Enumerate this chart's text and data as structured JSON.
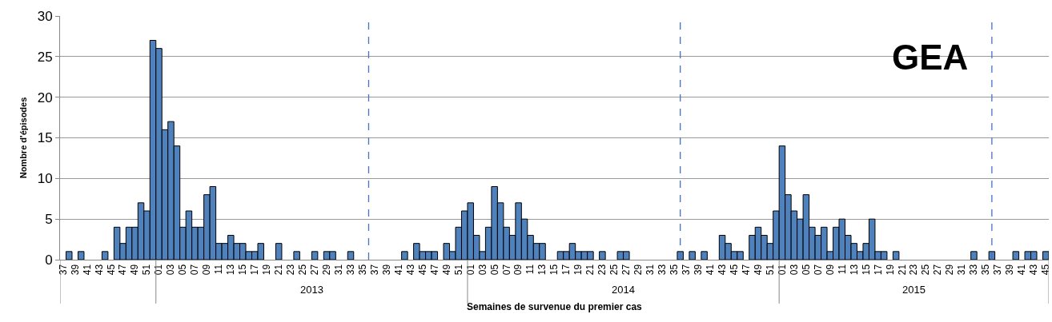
{
  "chart_data": {
    "type": "bar",
    "title": "GEA",
    "xlabel": "Semaines de survenue du premier cas",
    "ylabel": "Nombre d'épisodes",
    "annotations": [
      "2013",
      "2014",
      "2015"
    ],
    "categories": [
      "37",
      null,
      "39",
      null,
      "41",
      null,
      "43",
      null,
      "45",
      null,
      "47",
      null,
      "49",
      null,
      "51",
      null,
      "01",
      null,
      "03",
      null,
      "05",
      null,
      "07",
      null,
      "09",
      null,
      "11",
      null,
      "13",
      null,
      "15",
      null,
      "17",
      null,
      "19",
      null,
      "21",
      null,
      "23",
      null,
      "25",
      null,
      "27",
      null,
      "29",
      null,
      "31",
      null,
      "33",
      null,
      "35",
      null,
      "37",
      null,
      "39",
      null,
      "41",
      null,
      "43",
      null,
      "45",
      null,
      "47",
      null,
      "49",
      null,
      "51",
      null,
      "01",
      null,
      "03",
      null,
      "05",
      null,
      "07",
      null,
      "09",
      null,
      "11",
      null,
      "13",
      null,
      "15",
      null,
      "17",
      null,
      "19",
      null,
      "21",
      null,
      "23",
      null,
      "25",
      null,
      "27",
      null,
      "29",
      null,
      "31",
      null,
      "33",
      null,
      "35",
      null,
      "37",
      null,
      "39",
      null,
      "41",
      null,
      "43",
      null,
      "45",
      null,
      "47",
      null,
      "49",
      null,
      "51",
      null,
      "01",
      null,
      "03",
      null,
      "05",
      null,
      "07",
      null,
      "09",
      null,
      "11",
      null,
      "13",
      null,
      "15",
      null,
      "17",
      null,
      "19",
      null,
      "21",
      null,
      "23",
      null,
      "25",
      null,
      "27",
      null,
      "29",
      null,
      "31",
      null,
      "33",
      null,
      "35",
      null,
      "37",
      null,
      "39",
      null,
      "41",
      null,
      "43",
      null,
      "45"
    ],
    "values": [
      0,
      1,
      0,
      1,
      0,
      0,
      0,
      1,
      0,
      4,
      2,
      4,
      4,
      7,
      6,
      27,
      26,
      16,
      17,
      14,
      4,
      6,
      4,
      4,
      8,
      9,
      2,
      2,
      3,
      2,
      2,
      1,
      1,
      2,
      0,
      0,
      2,
      0,
      0,
      1,
      0,
      0,
      1,
      0,
      1,
      1,
      0,
      0,
      1,
      0,
      0,
      0,
      0,
      0,
      0,
      0,
      0,
      1,
      0,
      2,
      1,
      1,
      1,
      0,
      2,
      1,
      4,
      6,
      7,
      3,
      1,
      4,
      9,
      7,
      4,
      3,
      7,
      5,
      3,
      2,
      2,
      0,
      0,
      1,
      1,
      2,
      1,
      1,
      1,
      0,
      1,
      0,
      0,
      1,
      1,
      0,
      0,
      0,
      0,
      0,
      0,
      0,
      0,
      1,
      0,
      1,
      0,
      1,
      0,
      0,
      3,
      2,
      1,
      1,
      0,
      3,
      4,
      3,
      2,
      6,
      14,
      8,
      6,
      5,
      8,
      4,
      3,
      4,
      1,
      4,
      5,
      3,
      2,
      1,
      2,
      5,
      1,
      1,
      0,
      1,
      0,
      0,
      0,
      0,
      0,
      0,
      0,
      0,
      0,
      0,
      0,
      0,
      1,
      0,
      0,
      1,
      0,
      0,
      0,
      1,
      0,
      1,
      1,
      0,
      1
    ],
    "color": "#4f81bd",
    "ylim": [
      0,
      30
    ],
    "yticks": [
      0,
      5,
      10,
      15,
      20,
      25,
      30
    ],
    "grid": "y"
  }
}
